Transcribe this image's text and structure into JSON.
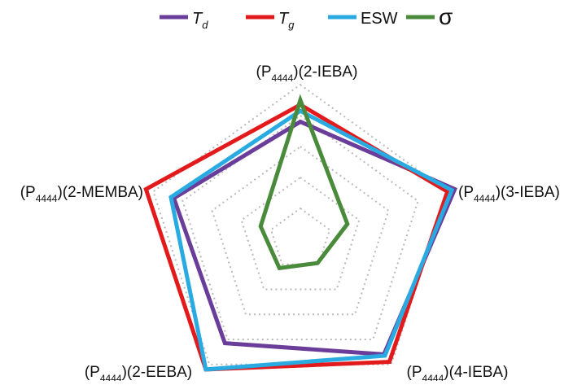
{
  "chart_data": {
    "type": "radar",
    "title": "",
    "axes": [
      {
        "prefix": "(P",
        "sub": "4444",
        "suffix": ")(2-IEBA)"
      },
      {
        "prefix": "(P",
        "sub": "4444",
        "suffix": ")(3-IEBA)"
      },
      {
        "prefix": "(P",
        "sub": "4444",
        "suffix": ")(4-IEBA)"
      },
      {
        "prefix": "(P",
        "sub": "4444",
        "suffix": ")(2-EEBA)"
      },
      {
        "prefix": "(P",
        "sub": "4444",
        "suffix": ")(2-MEMBA)"
      }
    ],
    "grid_levels": 5,
    "grid_style": "dotted",
    "legend": {
      "position": "top",
      "entries": [
        {
          "main": "T",
          "sub": "d",
          "italic": true
        },
        {
          "main": "T",
          "sub": "g",
          "italic": true
        },
        {
          "main": "ESW",
          "sub": "",
          "italic": false
        },
        {
          "main": "σ",
          "sub": "",
          "italic": false
        }
      ]
    },
    "series": [
      {
        "color": "#6a3d9a",
        "values": [
          0.76,
          1.05,
          0.92,
          0.83,
          0.86
        ]
      },
      {
        "color": "#e31a1c",
        "values": [
          0.87,
          1.0,
          0.98,
          1.04,
          1.05
        ]
      },
      {
        "color": "#29aae1",
        "values": [
          0.83,
          1.03,
          0.93,
          1.04,
          0.88
        ]
      },
      {
        "color": "#4a8b3b",
        "values": [
          0.9,
          0.32,
          0.19,
          0.23,
          0.27
        ]
      }
    ]
  }
}
